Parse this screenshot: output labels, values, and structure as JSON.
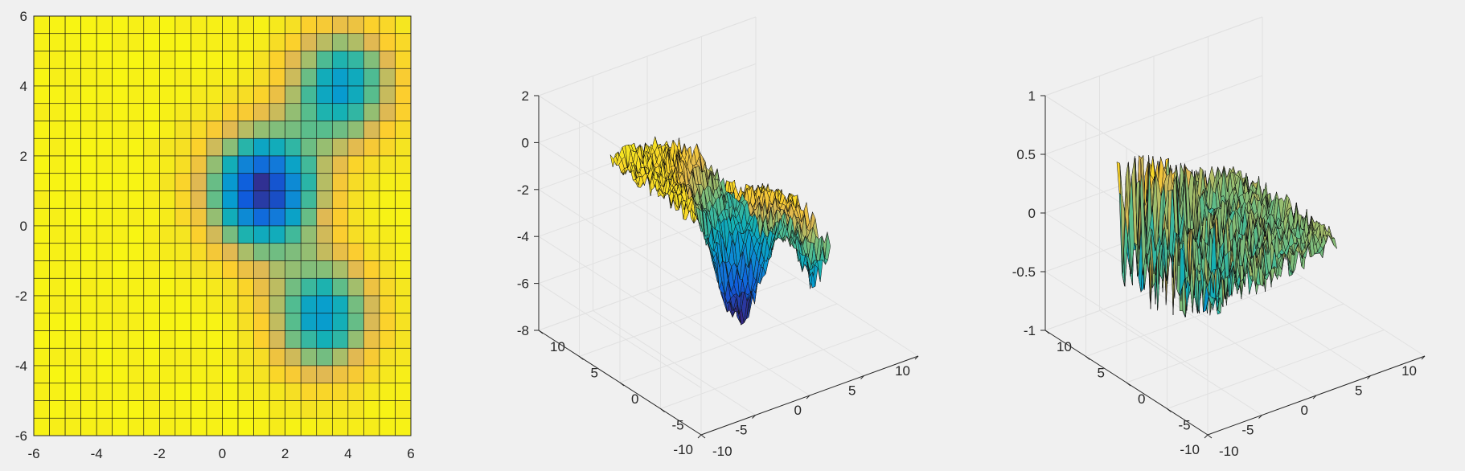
{
  "chart_data": [
    {
      "type": "heatmap",
      "view": "top-down pcolor",
      "colormap": "parula",
      "x": {
        "lim": [
          -6,
          6
        ],
        "ticks": [
          "-6",
          "-4",
          "-2",
          "0",
          "2",
          "4",
          "6"
        ]
      },
      "y": {
        "lim": [
          -6,
          6
        ],
        "ticks": [
          "-6",
          "-4",
          "-2",
          "0",
          "2",
          "4",
          "6"
        ]
      },
      "grid_cells": [
        24,
        24
      ],
      "surface": "gaussian wells: deep minimum near (1.3, 1.0), secondary minima near (3.8, 4.0) and (3.2, -2.6), plateau elsewhere",
      "tick_labels": {
        "x": [
          "-6",
          "-4",
          "-2",
          "0",
          "2",
          "4",
          "6"
        ],
        "y": [
          "-6",
          "-4",
          "-2",
          "0",
          "2",
          "4",
          "6"
        ]
      }
    },
    {
      "type": "surface3d",
      "colormap": "parula",
      "x": {
        "lim": [
          -10,
          10
        ],
        "ticks": [
          "-10",
          "-5",
          "0",
          "5",
          "10"
        ]
      },
      "y": {
        "lim": [
          -10,
          10
        ],
        "ticks": [
          "-10",
          "-5",
          "0",
          "5",
          "10"
        ]
      },
      "z": {
        "lim": [
          -8,
          2
        ],
        "ticks": [
          "-8",
          "-6",
          "-4",
          "-2",
          "0",
          "2"
        ]
      },
      "grid": true,
      "surface": "noisy plateau near z=-0.5 with two deep wells reaching about -7.5 and -5.5",
      "tick_labels": {
        "x": [
          "-10",
          "-5",
          "0",
          "5",
          "10"
        ],
        "y": [
          "-10",
          "-5",
          "0",
          "5",
          "10"
        ],
        "z": [
          "-8",
          "-6",
          "-4",
          "-2",
          "0",
          "2"
        ]
      }
    },
    {
      "type": "surface3d",
      "colormap": "parula",
      "x": {
        "lim": [
          -10,
          10
        ],
        "ticks": [
          "-10",
          "-5",
          "0",
          "5",
          "10"
        ]
      },
      "y": {
        "lim": [
          -10,
          10
        ],
        "ticks": [
          "-10",
          "-5",
          "0",
          "5",
          "10"
        ]
      },
      "z": {
        "lim": [
          -1,
          1
        ],
        "ticks": [
          "-1",
          "-0.5",
          "0",
          "0.5",
          "1"
        ]
      },
      "grid": true,
      "surface": "residual noise surface around z=0 with spikes up to about 0.6 and down to about -0.8",
      "tick_labels": {
        "x": [
          "-10",
          "-5",
          "0",
          "5",
          "10"
        ],
        "y": [
          "-10",
          "-5",
          "0",
          "5",
          "10"
        ],
        "z": [
          "-1",
          "-0.5",
          "0",
          "0.5",
          "1"
        ]
      }
    }
  ]
}
